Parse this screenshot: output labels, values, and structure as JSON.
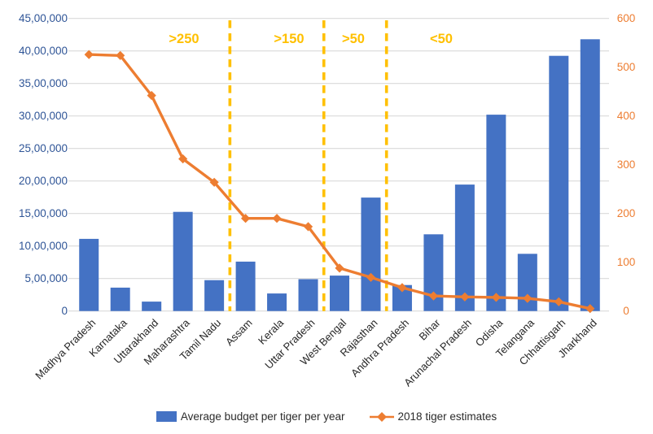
{
  "chart_data": {
    "type": "combo",
    "title": "",
    "categories": [
      "Madhya Pradesh",
      "Karnataka",
      "Uttarakhand",
      "Maharashtra",
      "Tamil Nadu",
      "Assam",
      "Kerala",
      "Uttar Pradesh",
      "West Bengal",
      "Rajasthan",
      "Andhra Pradesh",
      "Bihar",
      "Arunachal Pradesh",
      "Odisha",
      "Telangana",
      "Chhattisgarh",
      "Jharkhand"
    ],
    "series": [
      {
        "name": "Average budget per tiger per year",
        "type": "bar",
        "axis": "left",
        "color": "#4472C4",
        "values": [
          1110000,
          360000,
          145000,
          1525000,
          475000,
          760000,
          270000,
          490000,
          545000,
          1745000,
          400000,
          1180000,
          1945000,
          3020000,
          880000,
          3925000,
          4180000
        ]
      },
      {
        "name": "2018 tiger estimates",
        "type": "line",
        "axis": "right",
        "color": "#ED7D31",
        "values": [
          526,
          524,
          442,
          312,
          264,
          190,
          190,
          173,
          88,
          69,
          48,
          31,
          29,
          28,
          26,
          19,
          5
        ]
      }
    ],
    "left_axis": {
      "min": 0,
      "max": 4500000,
      "step": 500000,
      "tick_labels": [
        "0",
        "5,00,000",
        "10,00,000",
        "15,00,000",
        "20,00,000",
        "25,00,000",
        "30,00,000",
        "35,00,000",
        "40,00,000",
        "45,00,000"
      ],
      "label_color": "#2F5597"
    },
    "right_axis": {
      "min": 0,
      "max": 600,
      "step": 100,
      "tick_labels": [
        "0",
        "100",
        "200",
        "300",
        "400",
        "500",
        "600"
      ],
      "label_color": "#ED7D31"
    },
    "group_annotations": {
      "labels": [
        ">250",
        ">150",
        ">50",
        "<50"
      ],
      "divider_after_category_index": [
        4,
        7,
        9
      ],
      "color": "#FFC000"
    },
    "grid": true,
    "gridline_color": "#D9D9D9",
    "legend_position": "bottom",
    "x_label_color": "#262626"
  },
  "legend": {
    "items": [
      {
        "label": "Average budget per tiger per year",
        "marker": "bar-swatch-icon",
        "color": "#4472C4"
      },
      {
        "label": "2018 tiger estimates",
        "marker": "line-diamond-swatch-icon",
        "color": "#ED7D31"
      }
    ]
  }
}
